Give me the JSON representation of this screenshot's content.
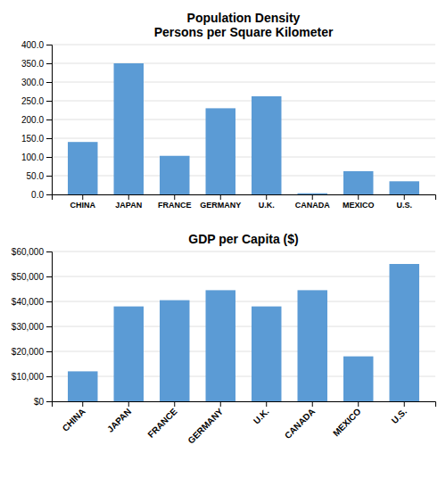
{
  "chart_data": [
    {
      "type": "bar",
      "title": "Population Density\nPersons per Square Kilometer",
      "categories": [
        "CHINA",
        "JAPAN",
        "FRANCE",
        "GERMANY",
        "U.K.",
        "CANADA",
        "MEXICO",
        "U.S."
      ],
      "values": [
        140,
        350,
        103,
        230,
        262,
        3,
        62,
        35
      ],
      "color": "#5B9BD5",
      "ylim": [
        0,
        400
      ],
      "yticks": [
        {
          "value": 0,
          "label": "0.0"
        },
        {
          "value": 50,
          "label": "50.0"
        },
        {
          "value": 100,
          "label": "100.0"
        },
        {
          "value": 150,
          "label": "150.0"
        },
        {
          "value": 200,
          "label": "200.0"
        },
        {
          "value": 250,
          "label": "250.0"
        },
        {
          "value": 300,
          "label": "300.0"
        },
        {
          "value": 350,
          "label": "350.0"
        },
        {
          "value": 400,
          "label": "400.0"
        }
      ],
      "grid": true
    },
    {
      "type": "bar",
      "title": "GDP per Capita ($)",
      "categories": [
        "CHINA",
        "JAPAN",
        "FRANCE",
        "GERMANY",
        "U.K.",
        "CANADA",
        "MEXICO",
        "U.S."
      ],
      "values": [
        12000,
        38000,
        40500,
        44500,
        38000,
        44500,
        18000,
        55000
      ],
      "color": "#5B9BD5",
      "ylim": [
        0,
        60000
      ],
      "yticks": [
        {
          "value": 0,
          "label": "$0"
        },
        {
          "value": 10000,
          "label": "$10,000"
        },
        {
          "value": 20000,
          "label": "$20,000"
        },
        {
          "value": 30000,
          "label": "$30,000"
        },
        {
          "value": 40000,
          "label": "$40,000"
        },
        {
          "value": 50000,
          "label": "$50,000"
        },
        {
          "value": 60000,
          "label": "$60,000"
        }
      ],
      "grid": true
    }
  ]
}
